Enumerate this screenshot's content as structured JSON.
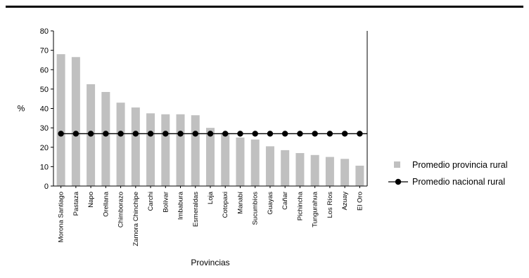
{
  "chart_data": {
    "type": "bar",
    "xlabel": "Provincias",
    "ylabel": "%",
    "ylim": [
      0,
      80
    ],
    "yticks": [
      0,
      10,
      20,
      30,
      40,
      50,
      60,
      70,
      80
    ],
    "grid": false,
    "legend_position": "right",
    "categories": [
      "Morona Santiago",
      "Pastaza",
      "Napo",
      "Orellana",
      "Chimborazo",
      "Zamora Chinchipe",
      "Carchi",
      "Bolívar",
      "Imbabura",
      "Esmeraldas",
      "Loja",
      "Cotopaxi",
      "Manabí",
      "Sucumbíos",
      "Guayas",
      "Cañar",
      "Pichincha",
      "Tungurahua",
      "Los Ríos",
      "Azuay",
      "El Oro"
    ],
    "series": [
      {
        "name": "Promedio provincia rural",
        "type": "bar",
        "color": "#c0c0c0",
        "values": [
          68,
          66.5,
          52.5,
          48.5,
          43,
          40.5,
          37.5,
          37,
          37,
          36.5,
          30,
          27.5,
          25,
          24,
          20.5,
          18.5,
          17,
          16,
          15,
          14,
          10.5
        ]
      },
      {
        "name": "Promedio nacional rural",
        "type": "line",
        "color": "#000000",
        "values": [
          27,
          27,
          27,
          27,
          27,
          27,
          27,
          27,
          27,
          27,
          27,
          27,
          27,
          27,
          27,
          27,
          27,
          27,
          27,
          27,
          27
        ]
      }
    ]
  }
}
